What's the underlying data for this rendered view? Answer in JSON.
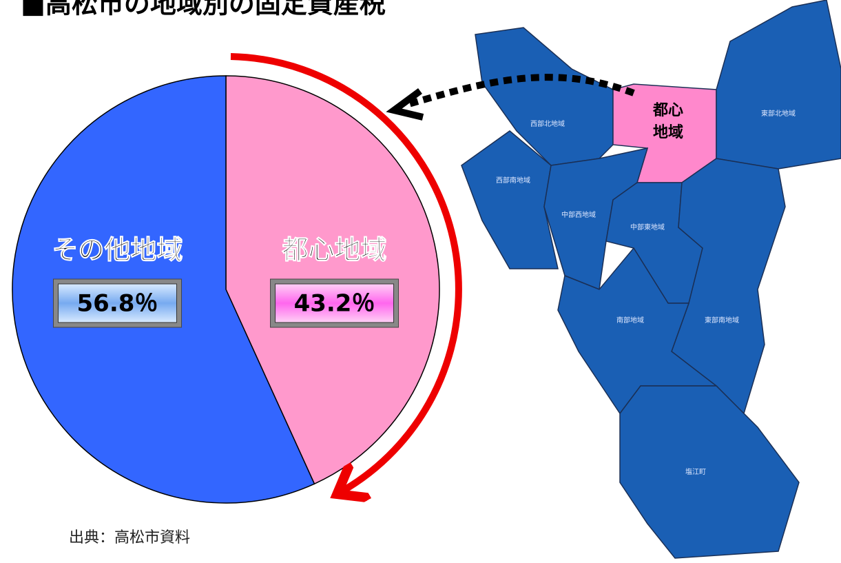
{
  "chart_data": {
    "type": "pie",
    "title": "■高松市の地域別の固定資産税",
    "categories": [
      "都心地域",
      "その他地域"
    ],
    "values": [
      43.2,
      56.8
    ],
    "value_labels": [
      "43.2％",
      "56.8％"
    ],
    "colors": [
      "#ff99cc",
      "#3366ff"
    ],
    "source": "出典：高松市資料"
  },
  "map": {
    "regions": [
      {
        "label": [
          "西部北地域"
        ]
      },
      {
        "label": [
          "都心",
          "地域"
        ]
      },
      {
        "label": [
          "東部北地域"
        ]
      },
      {
        "label": [
          "西部南地域"
        ]
      },
      {
        "label": [
          "中部西地域"
        ]
      },
      {
        "label": [
          "中部東地域"
        ]
      },
      {
        "label": [
          "東部南地域"
        ]
      },
      {
        "label": [
          "南部地域"
        ]
      },
      {
        "label": [
          "塩江町"
        ]
      }
    ]
  }
}
